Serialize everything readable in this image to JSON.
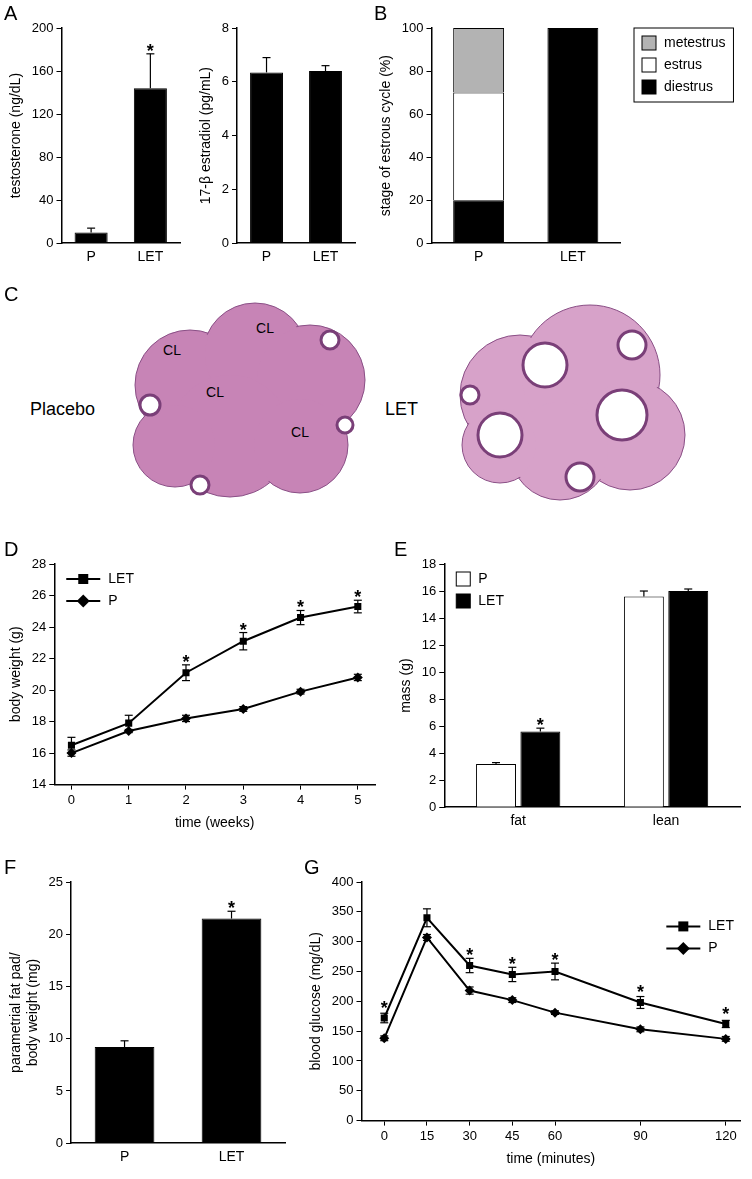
{
  "chart_data": [
    {
      "panel": "A",
      "type": "bar",
      "categories": [
        "P",
        "LET"
      ],
      "values": [
        10,
        144
      ],
      "errors": [
        4,
        32
      ],
      "color": "#000000",
      "y_label": "testosterone (ng/dL)",
      "ylim": [
        0,
        200
      ],
      "yticks": [
        0,
        40,
        80,
        120,
        160,
        200
      ],
      "grid": false,
      "annotations": [
        {
          "x": "LET",
          "text": "*"
        }
      ]
    },
    {
      "type": "bar",
      "categories": [
        "P",
        "LET"
      ],
      "values": [
        6.35,
        6.4
      ],
      "errors": [
        0.55,
        0.2
      ],
      "color": "#000000",
      "y_label": "17-β estradiol (pg/mL)",
      "ylim": [
        0,
        8
      ],
      "yticks": [
        0,
        2,
        4,
        6,
        8
      ],
      "grid": false
    },
    {
      "panel": "B",
      "type": "bar",
      "stacked": true,
      "categories": [
        "P",
        "LET"
      ],
      "series": [
        {
          "name": "diestrus",
          "color": "#000000",
          "values": [
            20,
            100
          ]
        },
        {
          "name": "estrus",
          "color": "#ffffff",
          "values": [
            50,
            0
          ]
        },
        {
          "name": "metestrus",
          "color": "#b3b3b3",
          "values": [
            30,
            0
          ]
        }
      ],
      "y_label": "stage of estrous cycle (%)",
      "ylim": [
        0,
        100
      ],
      "yticks": [
        0,
        20,
        40,
        60,
        80,
        100
      ],
      "legend": "upper right",
      "grid": false
    },
    {
      "panel": "D",
      "type": "line",
      "x": [
        0,
        1,
        2,
        3,
        4,
        5
      ],
      "series": [
        {
          "name": "LET",
          "color": "#000000",
          "marker": "square",
          "values": [
            16.5,
            17.9,
            21.1,
            23.1,
            24.6,
            25.3
          ],
          "errors": [
            0.5,
            0.5,
            0.5,
            0.55,
            0.45,
            0.4
          ]
        },
        {
          "name": "P",
          "color": "#000000",
          "marker": "diamond",
          "values": [
            16.0,
            17.4,
            18.2,
            18.8,
            19.9,
            20.8
          ],
          "errors": [
            0.2,
            0.1,
            0.2,
            0.15,
            0.15,
            0.2
          ]
        }
      ],
      "x_label": "time (weeks)",
      "y_label": "body weight (g)",
      "xlim": [
        -0.3,
        5.3
      ],
      "xticks": [
        0,
        1,
        2,
        3,
        4,
        5
      ],
      "ylim": [
        14,
        28
      ],
      "yticks": [
        14,
        16,
        18,
        20,
        22,
        24,
        26,
        28
      ],
      "legend": "upper left",
      "grid": false,
      "annotations": [
        {
          "series": "LET",
          "x": 2,
          "text": "*"
        },
        {
          "series": "LET",
          "x": 3,
          "text": "*"
        },
        {
          "series": "LET",
          "x": 4,
          "text": "*"
        },
        {
          "series": "LET",
          "x": 5,
          "text": "*"
        }
      ]
    },
    {
      "panel": "E",
      "type": "bar",
      "categories": [
        "fat",
        "lean"
      ],
      "series": [
        {
          "name": "P",
          "color": "#ffffff",
          "values": [
            3.2,
            15.6
          ],
          "errors": [
            0.1,
            0.4
          ]
        },
        {
          "name": "LET",
          "color": "#000000",
          "values": [
            5.6,
            16.0
          ],
          "errors": [
            0.25,
            0.15
          ]
        }
      ],
      "y_label": "mass (g)",
      "ylim": [
        0,
        18
      ],
      "yticks": [
        0,
        2,
        4,
        6,
        8,
        10,
        12,
        14,
        16,
        18
      ],
      "legend": "upper left",
      "grid": false,
      "annotations": [
        {
          "series": "LET",
          "x": "fat",
          "text": "*"
        }
      ]
    },
    {
      "panel": "F",
      "type": "bar",
      "categories": [
        "P",
        "LET"
      ],
      "values": [
        9.2,
        21.5
      ],
      "errors": [
        0.6,
        0.7
      ],
      "color": "#000000",
      "y_label": [
        "parametrial fat pad/",
        "body weight (mg)"
      ],
      "ylim": [
        0,
        25
      ],
      "yticks": [
        0,
        5,
        10,
        15,
        20,
        25
      ],
      "grid": false,
      "annotations": [
        {
          "x": "LET",
          "text": "*"
        }
      ]
    },
    {
      "panel": "G",
      "type": "line",
      "x": [
        0,
        15,
        30,
        45,
        60,
        90,
        120
      ],
      "series": [
        {
          "name": "LET",
          "color": "#000000",
          "marker": "square",
          "values": [
            172,
            340,
            260,
            245,
            250,
            198,
            162
          ],
          "errors": [
            8,
            15,
            12,
            12,
            14,
            10,
            6
          ]
        },
        {
          "name": "P",
          "color": "#000000",
          "marker": "diamond",
          "values": [
            138,
            307,
            218,
            202,
            181,
            153,
            137
          ],
          "errors": [
            4,
            5,
            6,
            4,
            3,
            4,
            4
          ]
        }
      ],
      "x_label": "time (minutes)",
      "y_label": "blood glucose (mg/dL)",
      "xlim": [
        -8,
        125
      ],
      "xticks": [
        0,
        15,
        30,
        45,
        60,
        90,
        120
      ],
      "ylim": [
        0,
        400
      ],
      "yticks": [
        0,
        50,
        100,
        150,
        200,
        250,
        300,
        350,
        400
      ],
      "legend": "right",
      "grid": false,
      "annotations": [
        {
          "series": "LET",
          "x": 0,
          "text": "*"
        },
        {
          "series": "LET",
          "x": 30,
          "text": "*"
        },
        {
          "series": "LET",
          "x": 45,
          "text": "*"
        },
        {
          "series": "LET",
          "x": 60,
          "text": "*"
        },
        {
          "series": "LET",
          "x": 90,
          "text": "*"
        },
        {
          "series": "LET",
          "x": 120,
          "text": "*"
        }
      ]
    }
  ],
  "micrographs": {
    "panel": "C",
    "images": [
      {
        "label": "Placebo",
        "annotations": [
          "CL",
          "CL",
          "CL",
          "CL"
        ]
      },
      {
        "label": "LET"
      }
    ]
  }
}
